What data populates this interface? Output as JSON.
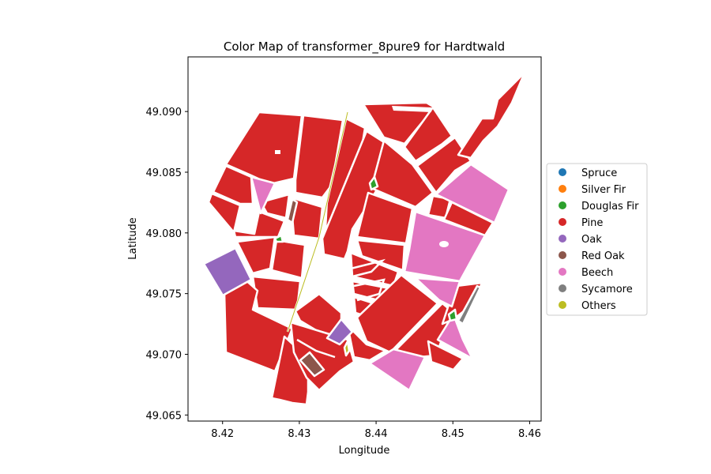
{
  "figure": {
    "title": "Color Map of transformer_8pure9 for Hardtwald",
    "xlabel": "Longitude",
    "ylabel": "Latitude"
  },
  "axes": {
    "xlim": [
      8.4155,
      8.4615
    ],
    "ylim": [
      49.0645,
      49.0945
    ],
    "xticks": [
      {
        "value": 8.42,
        "label": "8.42"
      },
      {
        "value": 8.43,
        "label": "8.43"
      },
      {
        "value": 8.44,
        "label": "8.44"
      },
      {
        "value": 8.45,
        "label": "8.45"
      },
      {
        "value": 8.46,
        "label": "8.46"
      }
    ],
    "yticks": [
      {
        "value": 49.065,
        "label": "49.065"
      },
      {
        "value": 49.07,
        "label": "49.070"
      },
      {
        "value": 49.075,
        "label": "49.075"
      },
      {
        "value": 49.08,
        "label": "49.080"
      },
      {
        "value": 49.085,
        "label": "49.085"
      },
      {
        "value": 49.09,
        "label": "49.090"
      }
    ]
  },
  "legend": {
    "placement": "center-right outside",
    "items": [
      {
        "label": "Spruce",
        "color": "#1f77b4"
      },
      {
        "label": "Silver Fir",
        "color": "#ff7f0e"
      },
      {
        "label": "Douglas Fir",
        "color": "#2ca02c"
      },
      {
        "label": "Pine",
        "color": "#d62728"
      },
      {
        "label": "Oak",
        "color": "#9467bd"
      },
      {
        "label": "Red Oak",
        "color": "#8c564b"
      },
      {
        "label": "Beech",
        "color": "#e377c2"
      },
      {
        "label": "Sycamore",
        "color": "#7f7f7f"
      },
      {
        "label": "Others",
        "color": "#bcbd22"
      }
    ]
  }
}
